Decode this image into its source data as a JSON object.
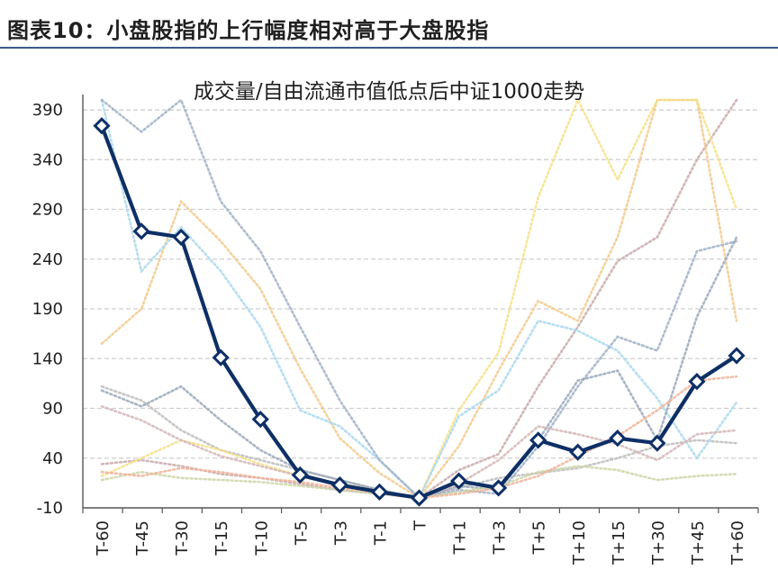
{
  "figure": {
    "label": "图表10：",
    "caption": "小盘股指的上行幅度相对高于大盘股指"
  },
  "chart_data": {
    "type": "line",
    "title": "成交量/自由流通市值低点后中证1000走势",
    "xlabel": "",
    "ylabel": "",
    "categories": [
      "T-60",
      "T-45",
      "T-30",
      "T-15",
      "T-10",
      "T-5",
      "T-3",
      "T-1",
      "T",
      "T+1",
      "T+3",
      "T+5",
      "T+10",
      "T+15",
      "T+30",
      "T+45",
      "T+60"
    ],
    "yticks": [
      -10,
      40,
      90,
      140,
      190,
      240,
      290,
      340,
      390
    ],
    "ylim": [
      -10,
      400
    ],
    "grid": "horizontal dashed",
    "main_series": {
      "color": "#0e2f66",
      "values": [
        374,
        268,
        262,
        141,
        79,
        23,
        13,
        6,
        0,
        17,
        10,
        58,
        46,
        60,
        55,
        117,
        143
      ]
    },
    "background_series": [
      {
        "color": "#bcbcbc",
        "values": [
          112,
          98,
          68,
          48,
          38,
          28,
          18,
          8,
          0,
          10,
          20,
          25,
          30,
          40,
          52,
          58,
          55
        ]
      },
      {
        "color": "#c9a9a9",
        "values": [
          34,
          38,
          32,
          24,
          20,
          14,
          8,
          4,
          0,
          28,
          44,
          112,
          172,
          238,
          262,
          340,
          400
        ]
      },
      {
        "color": "#f2c98c",
        "values": [
          155,
          190,
          298,
          258,
          210,
          130,
          60,
          25,
          0,
          52,
          128,
          198,
          178,
          262,
          400,
          400,
          178
        ]
      },
      {
        "color": "#f5e08a",
        "values": [
          22,
          40,
          58,
          48,
          34,
          22,
          14,
          8,
          0,
          88,
          146,
          302,
          400,
          320,
          400,
          400,
          290
        ]
      },
      {
        "color": "#a8d8ee",
        "values": [
          400,
          228,
          272,
          228,
          172,
          88,
          72,
          38,
          0,
          82,
          108,
          178,
          168,
          148,
          100,
          40,
          96
        ]
      },
      {
        "color": "#9fb0c6",
        "values": [
          400,
          368,
          400,
          298,
          248,
          172,
          98,
          38,
          0,
          8,
          4,
          52,
          112,
          162,
          148,
          248,
          258
        ]
      },
      {
        "color": "#9aa7ba",
        "values": [
          108,
          92,
          112,
          78,
          48,
          28,
          18,
          8,
          0,
          12,
          8,
          58,
          118,
          128,
          58,
          182,
          262
        ]
      },
      {
        "color": "#d5b6b6",
        "values": [
          92,
          78,
          58,
          42,
          32,
          22,
          12,
          6,
          0,
          14,
          38,
          72,
          64,
          54,
          38,
          64,
          68
        ]
      },
      {
        "color": "#cdd6a8",
        "values": [
          18,
          26,
          20,
          18,
          16,
          12,
          8,
          4,
          0,
          6,
          12,
          26,
          32,
          28,
          18,
          22,
          24
        ]
      },
      {
        "color": "#f0b49a",
        "values": [
          26,
          22,
          30,
          26,
          20,
          16,
          10,
          6,
          0,
          4,
          10,
          22,
          42,
          62,
          88,
          118,
          122
        ]
      }
    ]
  }
}
